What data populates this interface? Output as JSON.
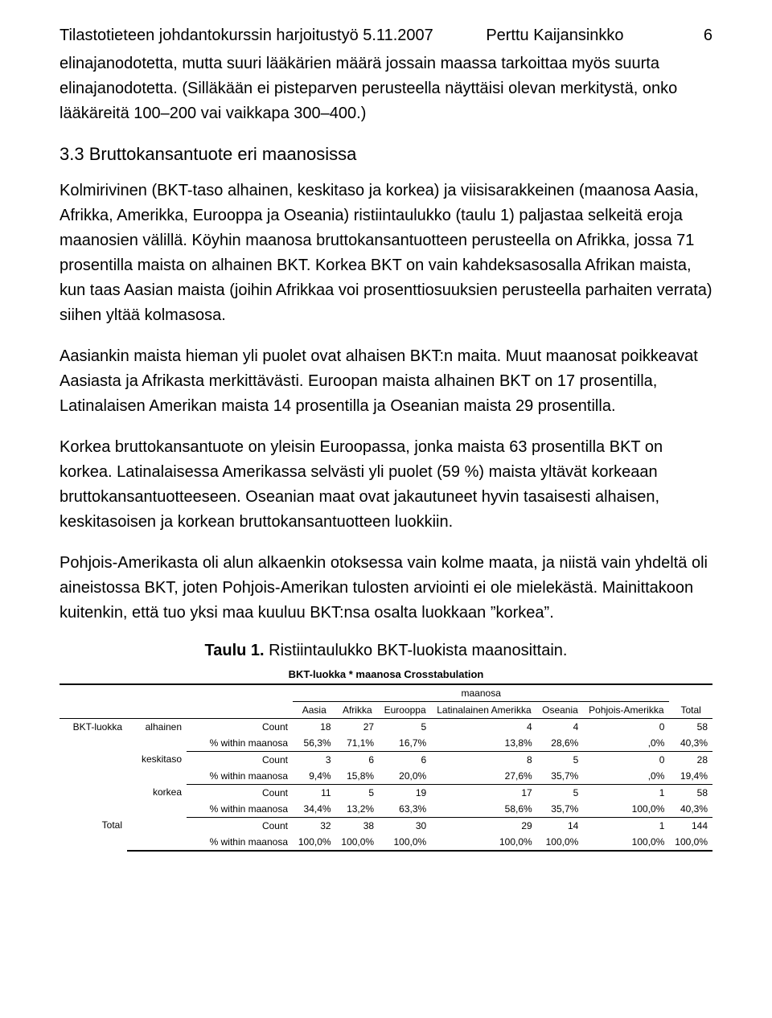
{
  "header": {
    "left": "Tilastotieteen johdantokurssin harjoitustyö 5.11.2007",
    "mid": "Perttu Kaijansinkko",
    "page_no": "6"
  },
  "paragraphs": {
    "p1": "elinajanodotetta, mutta suuri lääkärien määrä jossain maassa tarkoittaa myös suurta elinajanodotetta. (Silläkään ei pisteparven perusteella näyttäisi olevan merkitystä, onko lääkäreitä 100–200 vai vaikkapa 300–400.)",
    "p2": "Kolmirivinen (BKT-taso alhainen, keskitaso ja korkea) ja viisisarakkeinen (maanosa Aasia, Afrikka, Amerikka, Eurooppa ja Oseania) ristiintaulukko (taulu 1) paljastaa selkeitä eroja maanosien välillä. Köyhin maanosa bruttokansantuotteen perusteella on Afrikka, jossa 71 prosentilla maista on alhainen BKT. Korkea BKT on vain kahdeksasosalla Afrikan maista, kun taas Aasian maista (joihin Afrikkaa voi prosenttiosuuksien perusteella parhaiten verrata) siihen yltää kolmasosa.",
    "p3": "Aasiankin maista hieman yli puolet ovat alhaisen BKT:n maita. Muut maanosat poikkeavat Aasiasta ja Afrikasta merkittävästi. Euroopan maista alhainen BKT on 17 prosentilla, Latinalaisen Amerikan maista 14 prosentilla ja Oseanian maista 29 prosentilla.",
    "p4": "Korkea bruttokansantuote on yleisin Euroopassa, jonka maista 63 prosentilla BKT on korkea. Latinalaisessa Amerikassa selvästi yli puolet (59 %) maista yltävät korkeaan bruttokansantuotteeseen. Oseanian maat ovat jakautuneet hyvin tasaisesti alhaisen, keskitasoisen ja korkean bruttokansantuotteen luokkiin.",
    "p5": "Pohjois-Amerikasta oli alun alkaenkin otoksessa vain kolme maata, ja niistä vain yhdeltä oli aineistossa BKT, joten Pohjois-Amerikan tulosten arviointi ei ole mielekästä. Mainittakoon kuitenkin, että tuo yksi maa kuuluu BKT:nsa osalta luokkaan ”korkea”."
  },
  "section_heading": "3.3 Bruttokansantuote eri maanosissa",
  "table": {
    "caption_bold": "Taulu 1.",
    "caption_rest": " Ristiintaulukko BKT-luokista maanosittain.",
    "crosstab_title": "BKT-luokka * maanosa Crosstabulation",
    "group_header": "maanosa",
    "columns": [
      "Aasia",
      "Afrikka",
      "Eurooppa",
      "Latinalainen Amerikka",
      "Oseania",
      "Pohjois-Amerikka",
      "Total"
    ],
    "stub1": "BKT-luokka",
    "row_labels": [
      "alhainen",
      "keskitaso",
      "korkea"
    ],
    "measure_labels": [
      "Count",
      "% within maanosa"
    ],
    "total_label": "Total",
    "data": {
      "alhainen": {
        "count": [
          "18",
          "27",
          "5",
          "4",
          "4",
          "0",
          "58"
        ],
        "pct": [
          "56,3%",
          "71,1%",
          "16,7%",
          "13,8%",
          "28,6%",
          ",0%",
          "40,3%"
        ]
      },
      "keskitaso": {
        "count": [
          "3",
          "6",
          "6",
          "8",
          "5",
          "0",
          "28"
        ],
        "pct": [
          "9,4%",
          "15,8%",
          "20,0%",
          "27,6%",
          "35,7%",
          ",0%",
          "19,4%"
        ]
      },
      "korkea": {
        "count": [
          "11",
          "5",
          "19",
          "17",
          "5",
          "1",
          "58"
        ],
        "pct": [
          "34,4%",
          "13,2%",
          "63,3%",
          "58,6%",
          "35,7%",
          "100,0%",
          "40,3%"
        ]
      },
      "total": {
        "count": [
          "32",
          "38",
          "30",
          "29",
          "14",
          "1",
          "144"
        ],
        "pct": [
          "100,0%",
          "100,0%",
          "100,0%",
          "100,0%",
          "100,0%",
          "100,0%",
          "100,0%"
        ]
      }
    }
  }
}
